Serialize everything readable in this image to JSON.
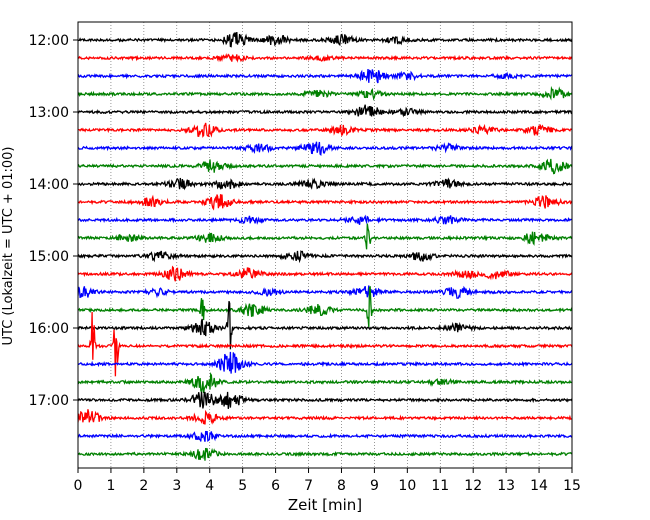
{
  "chart_data": {
    "type": "line",
    "subtype": "helicorder",
    "xlabel": "Zeit  [min]",
    "ylabel": "UTC (Lokalzeit = UTC + 01:00)",
    "xlim": [
      0,
      15
    ],
    "x_ticks": [
      0,
      1,
      2,
      3,
      4,
      5,
      6,
      7,
      8,
      9,
      10,
      11,
      12,
      13,
      14,
      15
    ],
    "x_grid": "dotted vertical lines at every minute",
    "y_ticks": [
      "12:00",
      "13:00",
      "14:00",
      "15:00",
      "16:00",
      "17:00"
    ],
    "rows_per_hour": 4,
    "row_minutes": 15,
    "first_row_time": "12:00",
    "row_count": 24,
    "color_cycle": [
      "#000000",
      "#ff0000",
      "#0000ff",
      "#008000"
    ],
    "rows": [
      {
        "start": "12:00",
        "color": "#000000",
        "bursts": [
          {
            "min": 4.8,
            "amp": 7
          },
          {
            "min": 6.0,
            "amp": 5
          },
          {
            "min": 8.0,
            "amp": 5
          },
          {
            "min": 9.7,
            "amp": 3
          }
        ]
      },
      {
        "start": "12:15",
        "color": "#ff0000",
        "bursts": [
          {
            "min": 4.7,
            "amp": 3
          },
          {
            "min": 7.4,
            "amp": 2
          }
        ]
      },
      {
        "start": "12:30",
        "color": "#0000ff",
        "bursts": [
          {
            "min": 8.95,
            "amp": 8
          },
          {
            "min": 10.0,
            "amp": 3
          },
          {
            "min": 13.0,
            "amp": 2
          }
        ]
      },
      {
        "start": "12:45",
        "color": "#008000",
        "bursts": [
          {
            "min": 7.3,
            "amp": 3
          },
          {
            "min": 8.9,
            "amp": 4
          },
          {
            "min": 14.5,
            "amp": 5
          }
        ]
      },
      {
        "start": "13:00",
        "color": "#000000",
        "bursts": [
          {
            "min": 8.8,
            "amp": 7
          },
          {
            "min": 10.0,
            "amp": 3
          }
        ]
      },
      {
        "start": "13:15",
        "color": "#ff0000",
        "bursts": [
          {
            "min": 3.8,
            "amp": 7
          },
          {
            "min": 8.0,
            "amp": 4
          },
          {
            "min": 12.3,
            "amp": 3
          },
          {
            "min": 14.0,
            "amp": 5
          }
        ]
      },
      {
        "start": "13:30",
        "color": "#0000ff",
        "bursts": [
          {
            "min": 5.5,
            "amp": 4
          },
          {
            "min": 7.2,
            "amp": 7
          },
          {
            "min": 11.2,
            "amp": 3
          }
        ]
      },
      {
        "start": "13:45",
        "color": "#008000",
        "bursts": [
          {
            "min": 4.1,
            "amp": 6
          },
          {
            "min": 14.45,
            "amp": 7
          }
        ]
      },
      {
        "start": "14:00",
        "color": "#000000",
        "bursts": [
          {
            "min": 3.1,
            "amp": 5
          },
          {
            "min": 4.5,
            "amp": 5
          },
          {
            "min": 7.1,
            "amp": 4
          },
          {
            "min": 11.2,
            "amp": 4
          }
        ]
      },
      {
        "start": "14:15",
        "color": "#ff0000",
        "bursts": [
          {
            "min": 2.2,
            "amp": 5
          },
          {
            "min": 4.3,
            "amp": 8
          },
          {
            "min": 14.2,
            "amp": 6
          }
        ]
      },
      {
        "start": "14:30",
        "color": "#0000ff",
        "bursts": [
          {
            "min": 5.2,
            "amp": 3
          },
          {
            "min": 8.5,
            "amp": 4
          },
          {
            "min": 11.2,
            "amp": 4
          }
        ]
      },
      {
        "start": "14:45",
        "color": "#008000",
        "bursts": [
          {
            "min": 1.5,
            "amp": 3
          },
          {
            "min": 4.0,
            "amp": 4
          },
          {
            "min": 8.8,
            "amp": 20
          },
          {
            "min": 13.9,
            "amp": 6
          }
        ]
      },
      {
        "start": "15:00",
        "color": "#000000",
        "bursts": [
          {
            "min": 2.5,
            "amp": 4
          },
          {
            "min": 6.6,
            "amp": 5
          },
          {
            "min": 10.4,
            "amp": 4
          }
        ]
      },
      {
        "start": "15:15",
        "color": "#ff0000",
        "bursts": [
          {
            "min": 3.0,
            "amp": 7
          },
          {
            "min": 5.2,
            "amp": 6
          },
          {
            "min": 11.8,
            "amp": 4
          },
          {
            "min": 12.7,
            "amp": 5
          }
        ]
      },
      {
        "start": "15:30",
        "color": "#0000ff",
        "bursts": [
          {
            "min": 0.1,
            "amp": 6
          },
          {
            "min": 2.4,
            "amp": 3
          },
          {
            "min": 5.8,
            "amp": 3
          },
          {
            "min": 8.8,
            "amp": 6
          },
          {
            "min": 11.5,
            "amp": 5
          }
        ]
      },
      {
        "start": "15:45",
        "color": "#008000",
        "bursts": [
          {
            "min": 3.8,
            "amp": 30
          },
          {
            "min": 5.3,
            "amp": 6
          },
          {
            "min": 7.3,
            "amp": 5
          },
          {
            "min": 8.85,
            "amp": 25
          }
        ]
      },
      {
        "start": "16:00",
        "color": "#000000",
        "bursts": [
          {
            "min": 3.8,
            "amp": 8
          },
          {
            "min": 4.6,
            "amp": 40
          },
          {
            "min": 11.5,
            "amp": 4
          }
        ]
      },
      {
        "start": "16:15",
        "color": "#ff0000",
        "bursts": [
          {
            "min": 0.45,
            "amp": 45
          },
          {
            "min": 1.15,
            "amp": 40
          }
        ]
      },
      {
        "start": "16:30",
        "color": "#0000ff",
        "bursts": [
          {
            "min": 4.65,
            "amp": 12
          }
        ]
      },
      {
        "start": "16:45",
        "color": "#008000",
        "bursts": [
          {
            "min": 3.85,
            "amp": 10
          },
          {
            "min": 11.0,
            "amp": 3
          }
        ]
      },
      {
        "start": "17:00",
        "color": "#000000",
        "bursts": [
          {
            "min": 3.8,
            "amp": 8
          },
          {
            "min": 4.6,
            "amp": 8
          }
        ]
      },
      {
        "start": "17:15",
        "color": "#ff0000",
        "bursts": [
          {
            "min": 0.3,
            "amp": 8
          },
          {
            "min": 3.9,
            "amp": 6
          }
        ]
      },
      {
        "start": "17:30",
        "color": "#0000ff",
        "bursts": [
          {
            "min": 3.85,
            "amp": 5
          }
        ]
      },
      {
        "start": "17:45",
        "color": "#008000",
        "bursts": [
          {
            "min": 3.85,
            "amp": 6
          }
        ]
      }
    ]
  }
}
